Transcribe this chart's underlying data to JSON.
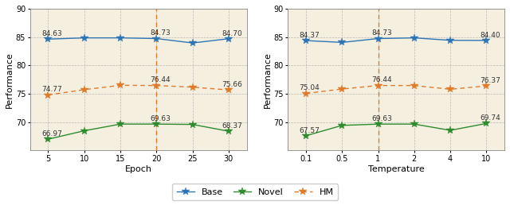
{
  "left": {
    "xlabel": "Epoch",
    "x": [
      5,
      10,
      15,
      20,
      25,
      30
    ],
    "x_labels": [
      "5",
      "10",
      "15",
      "20",
      "25",
      "30"
    ],
    "base": [
      84.63,
      84.85,
      84.85,
      84.73,
      83.95,
      84.7
    ],
    "novel": [
      66.97,
      68.45,
      69.63,
      69.63,
      69.57,
      68.37
    ],
    "hm": [
      74.77,
      75.71,
      76.48,
      76.44,
      76.15,
      75.66
    ],
    "base_labels": [
      "84.63",
      null,
      null,
      "84.73",
      null,
      "84.70"
    ],
    "novel_labels": [
      "66.97",
      null,
      null,
      "69.63",
      null,
      "68.37"
    ],
    "hm_labels": [
      "74.77",
      null,
      null,
      "76.44",
      null,
      "75.66"
    ],
    "vline_x": 20,
    "ylim": [
      65,
      90
    ],
    "yticks": [
      70,
      75,
      80,
      85,
      90
    ]
  },
  "right": {
    "xlabel": "Temperature",
    "x_labels": [
      "0.1",
      "0.5",
      "1",
      "2",
      "4",
      "10"
    ],
    "base": [
      84.37,
      84.05,
      84.73,
      84.85,
      84.42,
      84.4
    ],
    "novel": [
      67.57,
      69.4,
      69.63,
      69.63,
      68.53,
      69.74
    ],
    "hm": [
      75.04,
      75.82,
      76.44,
      76.44,
      75.78,
      76.37
    ],
    "base_labels": [
      "84.37",
      null,
      "84.73",
      null,
      null,
      "84.40"
    ],
    "novel_labels": [
      "67.57",
      null,
      "69.63",
      null,
      null,
      "69.74"
    ],
    "hm_labels": [
      "75.04",
      null,
      "76.44",
      null,
      null,
      "76.37"
    ],
    "vline_x_idx": 2,
    "ylim": [
      65,
      90
    ],
    "yticks": [
      70,
      75,
      80,
      85,
      90
    ]
  },
  "colors": {
    "base": "#2e75b6",
    "novel": "#2e8b2e",
    "hm": "#e07b2a"
  },
  "bg_color": "#f5efe0",
  "label_color": "#333333",
  "figsize": [
    6.4,
    2.58
  ],
  "dpi": 100
}
